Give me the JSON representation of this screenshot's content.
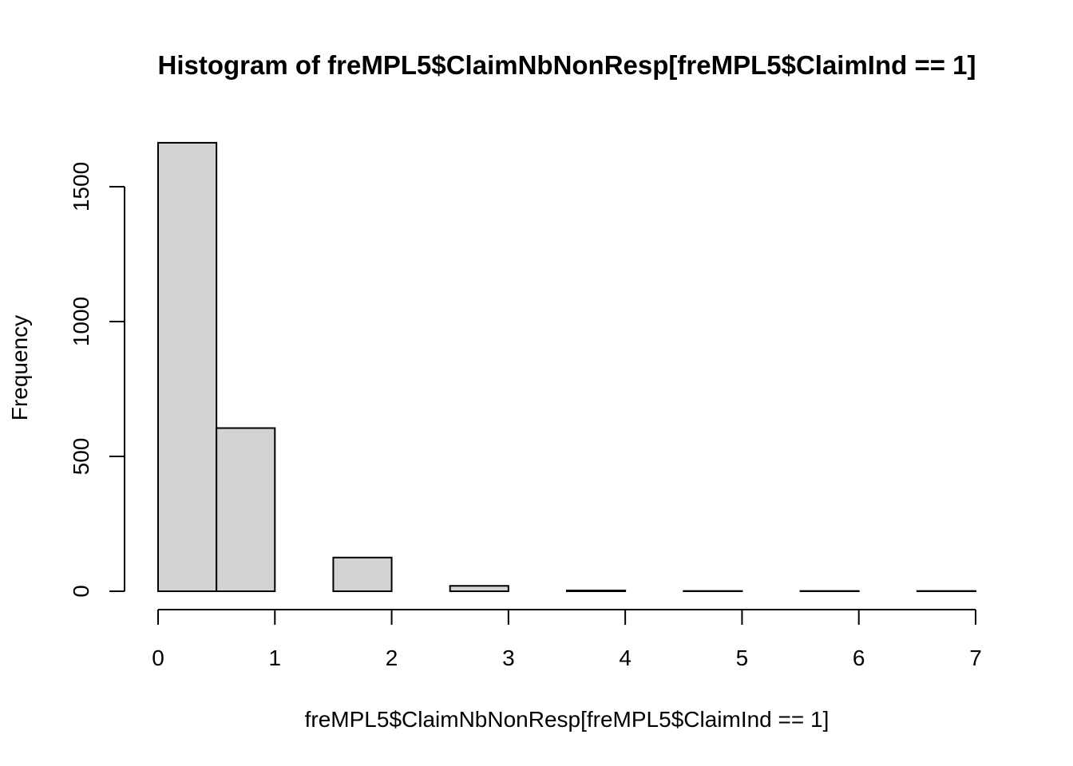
{
  "chart_data": {
    "type": "bar",
    "title": "Histogram of freMPL5$ClaimNbNonResp[freMPL5$ClaimInd == 1]",
    "xlabel": "freMPL5$ClaimNbNonResp[freMPL5$ClaimInd == 1]",
    "ylabel": "Frequency",
    "bins": [
      {
        "start": 0.0,
        "end": 0.5,
        "count": 1663
      },
      {
        "start": 0.5,
        "end": 1.0,
        "count": 605
      },
      {
        "start": 1.0,
        "end": 1.5,
        "count": 0
      },
      {
        "start": 1.5,
        "end": 2.0,
        "count": 125
      },
      {
        "start": 2.0,
        "end": 2.5,
        "count": 0
      },
      {
        "start": 2.5,
        "end": 3.0,
        "count": 20
      },
      {
        "start": 3.0,
        "end": 3.5,
        "count": 0
      },
      {
        "start": 3.5,
        "end": 4.0,
        "count": 3
      },
      {
        "start": 4.0,
        "end": 4.5,
        "count": 0
      },
      {
        "start": 4.5,
        "end": 5.0,
        "count": 1
      },
      {
        "start": 5.0,
        "end": 5.5,
        "count": 0
      },
      {
        "start": 5.5,
        "end": 6.0,
        "count": 1
      },
      {
        "start": 6.0,
        "end": 6.5,
        "count": 0
      },
      {
        "start": 6.5,
        "end": 7.0,
        "count": 1
      }
    ],
    "xlim": [
      0,
      7
    ],
    "ylim": [
      0,
      1663
    ],
    "x_ticks": [
      0,
      1,
      2,
      3,
      4,
      5,
      6,
      7
    ],
    "y_ticks": [
      0,
      500,
      1000,
      1500
    ],
    "bar_fill": "#d3d3d3",
    "bar_stroke": "#000000",
    "grid": false
  }
}
